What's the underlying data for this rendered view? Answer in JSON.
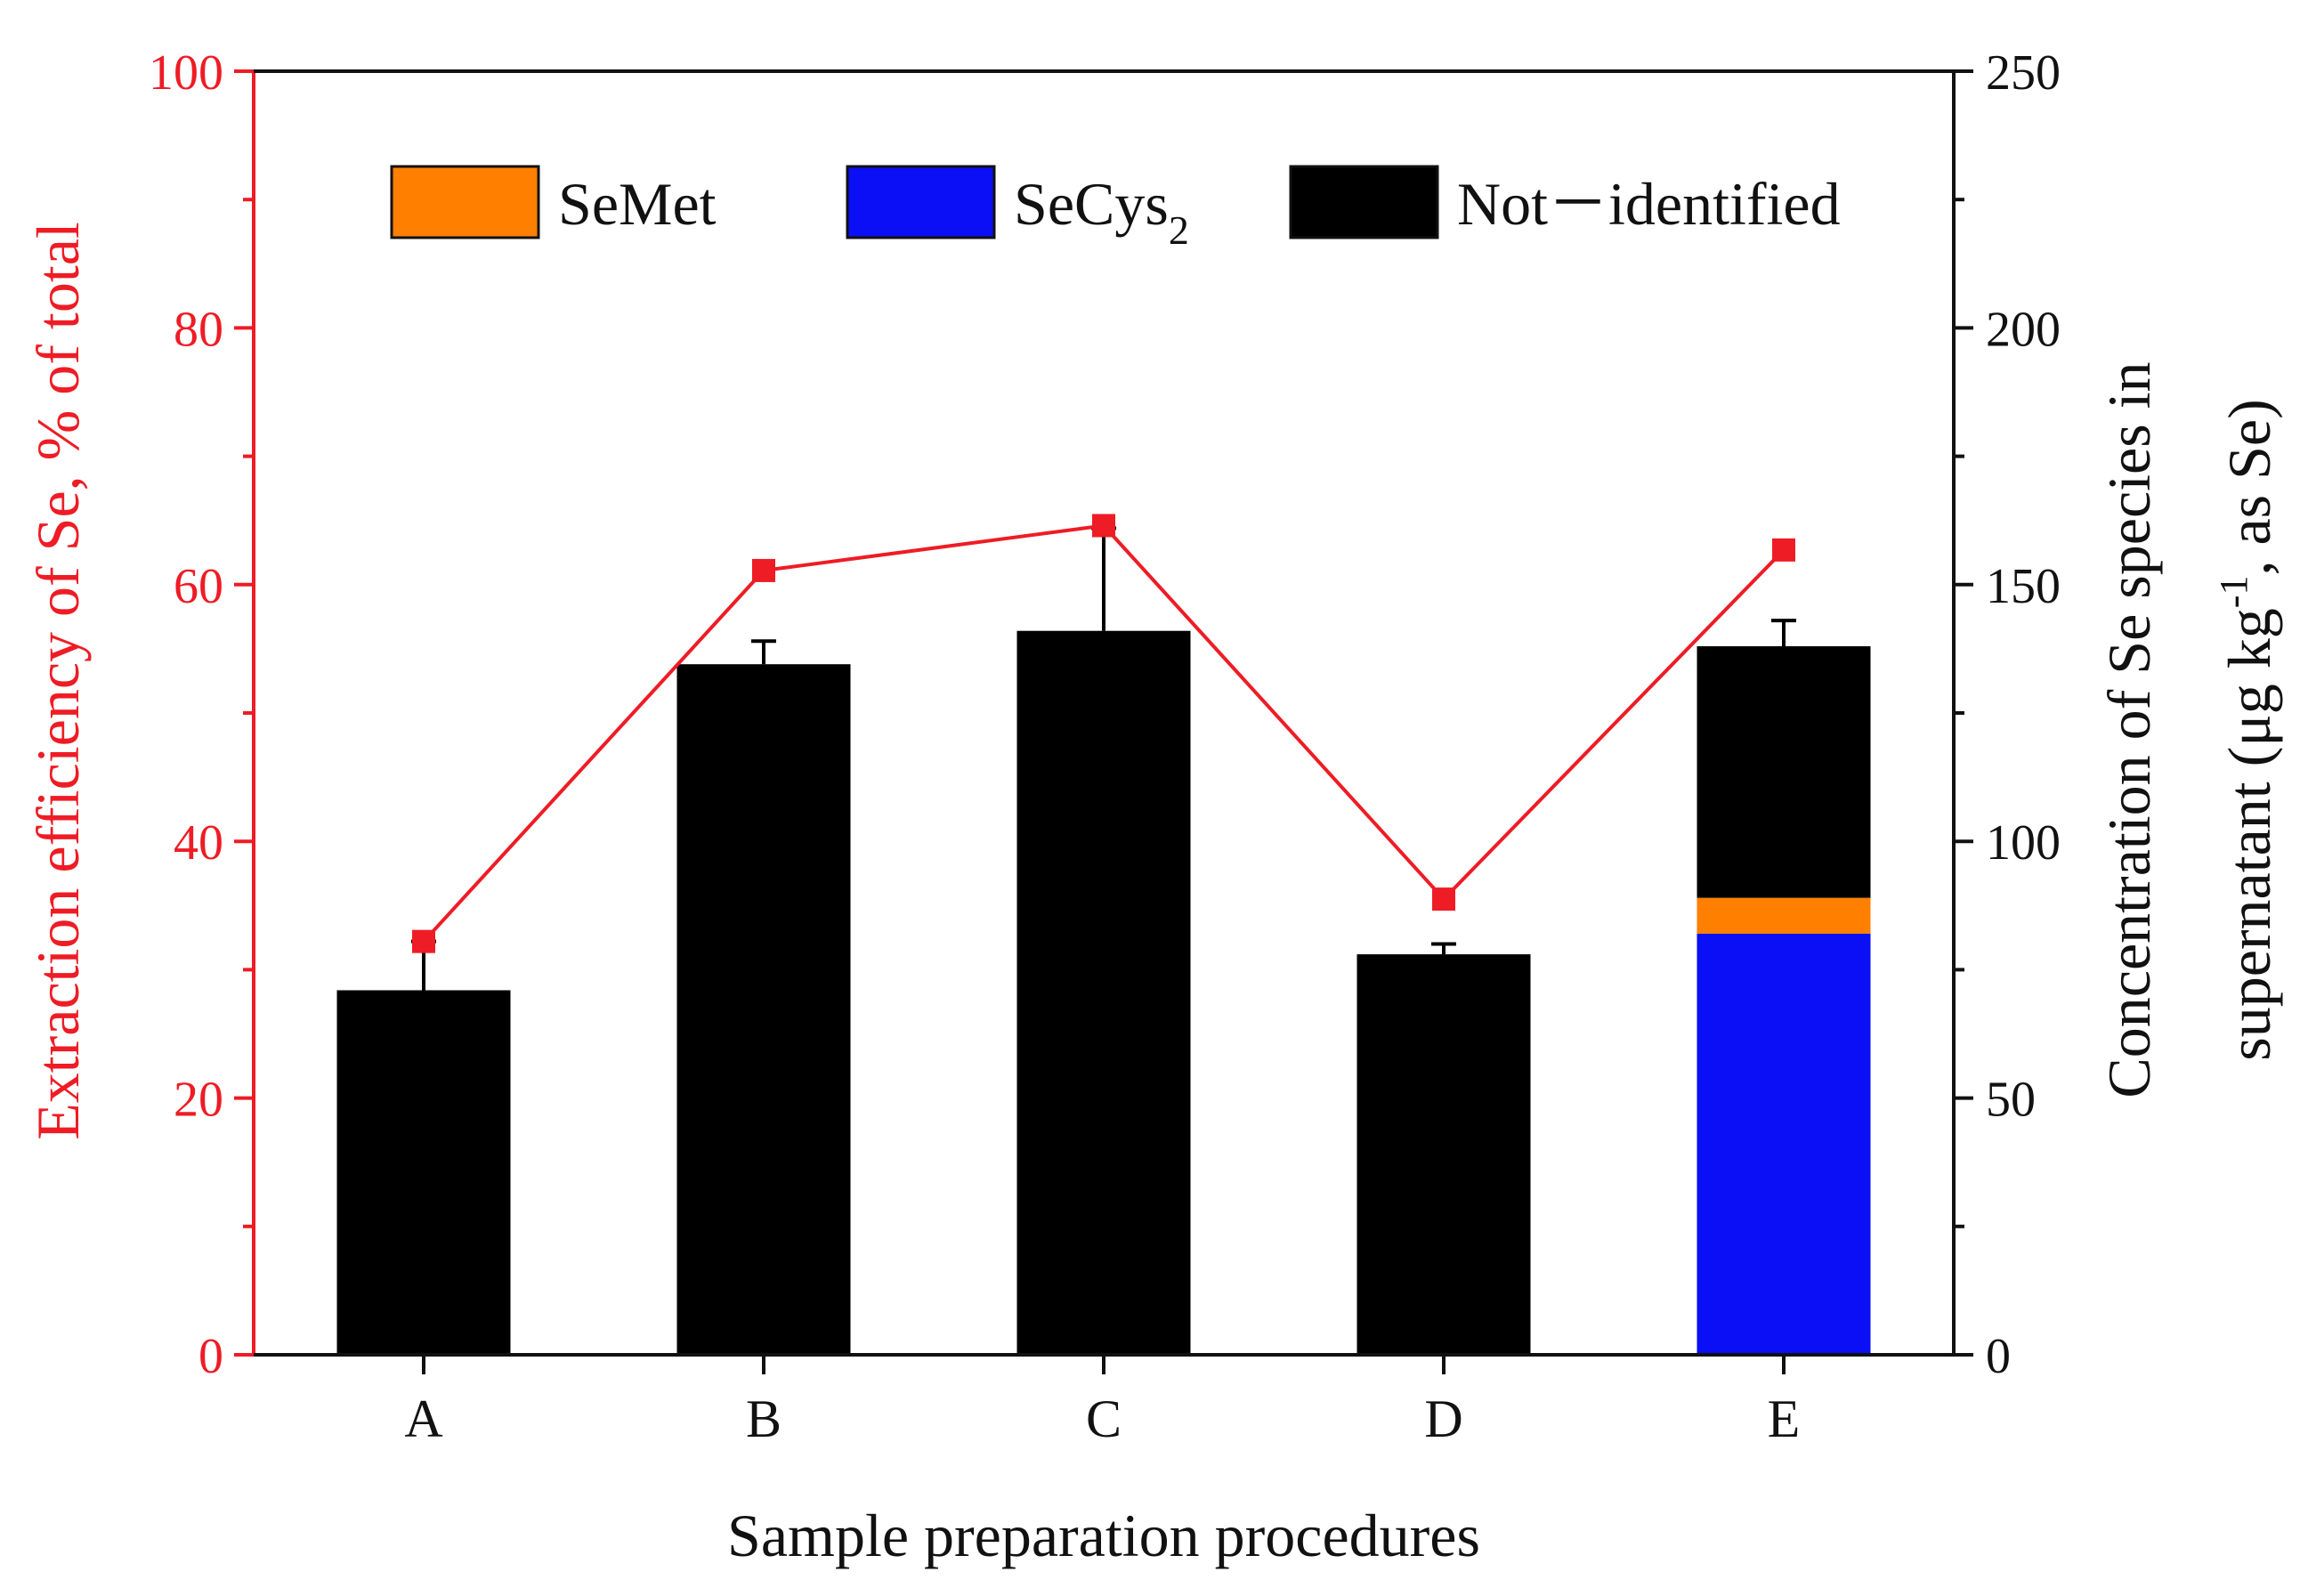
{
  "chart_data": {
    "type": "bar+line",
    "xlabel": "Sample preparation procedures",
    "ylabel_left": "Extraction efficiency of Se, % of total",
    "ylabel_right": {
      "line1": "Concentration of Se species in",
      "line2_prefix": "supernatant (μg kg",
      "line2_sup": "-1",
      "line2_suffix": ", as Se)"
    },
    "categories": [
      "A",
      "B",
      "C",
      "D",
      "E"
    ],
    "left_axis": {
      "range": [
        0,
        100
      ],
      "ticks": [
        0,
        20,
        40,
        60,
        80,
        100
      ]
    },
    "right_axis": {
      "range": [
        0,
        250
      ],
      "ticks": [
        0,
        50,
        100,
        150,
        200,
        250
      ]
    },
    "bar_series": [
      {
        "name": "SeCys",
        "name_sub": "2",
        "color": "#0a0ff5",
        "values": [
          0,
          0,
          0,
          0,
          82
        ]
      },
      {
        "name": "SeMet",
        "color": "#ff7f00",
        "values": [
          0,
          0,
          0,
          0,
          7
        ]
      },
      {
        "name": "Not－identified",
        "color": "#000000",
        "values": [
          71,
          134.5,
          141,
          78,
          49
        ]
      }
    ],
    "bar_error": [
      9.5,
      4.5,
      20,
      2,
      5
    ],
    "line_series": {
      "name": "Extraction efficiency",
      "color": "#ee1c25",
      "values": [
        32.2,
        61.1,
        64.6,
        35.5,
        62.7
      ]
    },
    "legend": [
      {
        "label": "SeMet",
        "sub": "",
        "color": "#ff7f00"
      },
      {
        "label": "SeCys",
        "sub": "2",
        "color": "#0a0ff5"
      },
      {
        "label": "Not－identified",
        "sub": "",
        "color": "#000000"
      }
    ],
    "legend_position": "top-center"
  },
  "colors": {
    "left_axis": "#ee1c25",
    "right_axis": "#111111",
    "frame": "#111111"
  }
}
